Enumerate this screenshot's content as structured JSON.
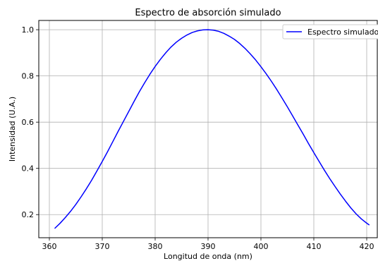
{
  "chart_data": {
    "type": "line",
    "title": "Espectro de absorción simulado",
    "xlabel": "Longitud de onda (nm)",
    "ylabel": "Intensidad (U.A.)",
    "xlim": [
      358,
      422
    ],
    "ylim": [
      0.1,
      1.04
    ],
    "grid": true,
    "legend_position": "top-right",
    "x_ticks": [
      360,
      370,
      380,
      390,
      400,
      410,
      420
    ],
    "y_ticks": [
      0.2,
      0.4,
      0.6,
      0.8,
      1.0
    ],
    "x_tick_labels": [
      "360",
      "370",
      "380",
      "390",
      "400",
      "410",
      "420"
    ],
    "y_tick_labels": [
      "0.2",
      "0.4",
      "0.6",
      "0.8",
      "1.0"
    ],
    "series": [
      {
        "name": "Espectro simulado",
        "color": "#0000ff",
        "x": [
          361,
          362,
          363,
          364,
          365,
          366,
          367,
          368,
          369,
          370,
          371,
          372,
          373,
          374,
          375,
          376,
          377,
          378,
          379,
          380,
          381,
          382,
          383,
          384,
          385,
          386,
          387,
          388,
          389,
          390,
          391,
          392,
          393,
          394,
          395,
          396,
          397,
          398,
          399,
          400,
          401,
          402,
          403,
          404,
          405,
          406,
          407,
          408,
          409,
          410,
          411,
          412,
          413,
          414,
          415,
          416,
          417,
          418,
          419,
          420,
          420.5
        ],
        "y": [
          0.14,
          0.162,
          0.187,
          0.214,
          0.244,
          0.277,
          0.312,
          0.349,
          0.389,
          0.43,
          0.472,
          0.516,
          0.56,
          0.603,
          0.646,
          0.689,
          0.731,
          0.77,
          0.807,
          0.841,
          0.872,
          0.9,
          0.925,
          0.946,
          0.963,
          0.977,
          0.988,
          0.995,
          0.999,
          1.0,
          0.998,
          0.993,
          0.984,
          0.972,
          0.958,
          0.94,
          0.919,
          0.895,
          0.869,
          0.84,
          0.809,
          0.776,
          0.741,
          0.704,
          0.666,
          0.627,
          0.587,
          0.548,
          0.507,
          0.468,
          0.43,
          0.392,
          0.356,
          0.322,
          0.289,
          0.258,
          0.229,
          0.203,
          0.181,
          0.163,
          0.155
        ]
      }
    ]
  }
}
